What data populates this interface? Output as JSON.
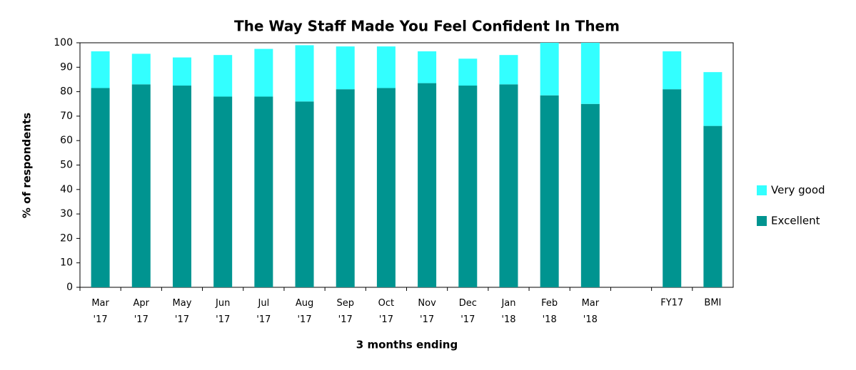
{
  "chart_data": {
    "type": "bar",
    "stacked": true,
    "title": "The Way Staff Made You Feel Confident In Them",
    "ylabel": "% of respondents",
    "xlabel": "3 months ending",
    "categories": [
      "Mar '17",
      "Apr '17",
      "May '17",
      "Jun '17",
      "Jul '17",
      "Aug '17",
      "Sep '17",
      "Oct '17",
      "Nov '17",
      "Dec '17",
      "Jan '18",
      "Feb '18",
      "Mar '18",
      null,
      "FY17",
      "BMI"
    ],
    "series": [
      {
        "name": "Excellent",
        "color": "#009490",
        "values": [
          81.5,
          83,
          82.5,
          78,
          78,
          76,
          81,
          81.5,
          83.5,
          82.5,
          83,
          78.5,
          75,
          null,
          81,
          66
        ]
      },
      {
        "name": "Very good",
        "color": "#33ffff",
        "values": [
          15,
          12.5,
          11.5,
          17,
          19.5,
          23,
          17.5,
          17,
          13,
          11,
          12,
          21.5,
          25,
          null,
          15.5,
          22
        ]
      }
    ],
    "ylim": [
      0,
      100
    ],
    "yticks": [
      0,
      10,
      20,
      30,
      40,
      50,
      60,
      70,
      80,
      90,
      100
    ],
    "grid": false,
    "legend": "right"
  }
}
